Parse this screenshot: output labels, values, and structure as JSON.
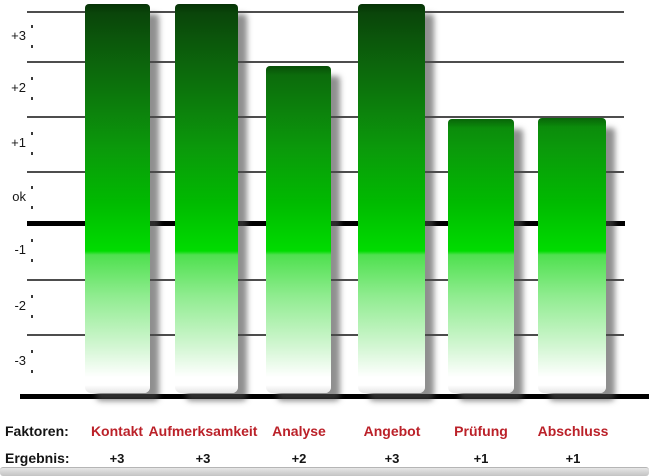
{
  "chart_data": {
    "type": "bar",
    "title": "",
    "categories": [
      "Kontakt",
      "Aufmerksamkeit",
      "Analyse",
      "Angebot",
      "Prüfung",
      "Abschluss"
    ],
    "values": [
      3,
      3,
      2,
      3,
      1,
      1
    ],
    "value_labels": [
      "+3",
      "+3",
      "+2",
      "+3",
      "+1",
      "+1"
    ],
    "y_tick_labels": [
      "+3",
      "+2",
      "+1",
      "ok",
      "-1",
      "-2",
      "-3"
    ],
    "ylim": [
      -3.5,
      3.5
    ],
    "grid": "horizontal",
    "legend": "none",
    "bar_color_top": "#0a4a0a",
    "bar_color_mid": "#00dc00",
    "bar_color_bottom": "#ffffff"
  },
  "rows": {
    "faktoren_label": "Faktoren:",
    "ergebnis_label": "Ergebnis:"
  },
  "colors": {
    "factor_text": "#bb2129",
    "axis_text": "#161616",
    "gridline": "#4d4d4d",
    "zero_line": "#000000"
  }
}
